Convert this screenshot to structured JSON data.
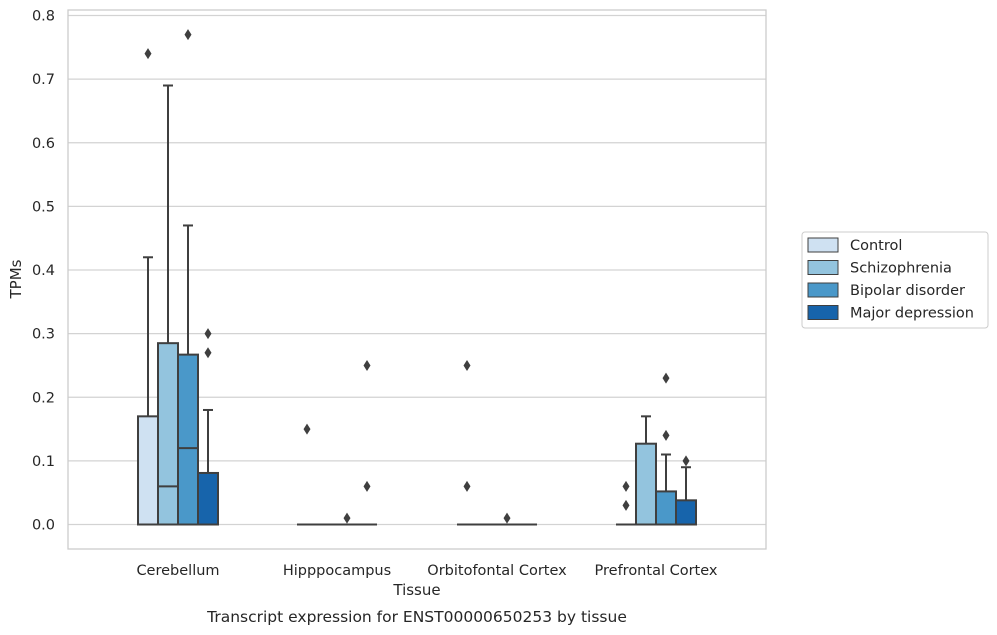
{
  "chart_data": {
    "type": "boxplot",
    "title": "",
    "caption": "Transcript expression for ENST00000650253 by tissue",
    "xlabel": "Tissue",
    "ylabel": "TPMs",
    "ylim": [
      -0.037,
      0.812
    ],
    "yticks": [
      0.0,
      0.1,
      0.2,
      0.3,
      0.4,
      0.5,
      0.6,
      0.7,
      0.8
    ],
    "ytick_labels": [
      "0.0",
      "0.1",
      "0.2",
      "0.3",
      "0.4",
      "0.5",
      "0.6",
      "0.7",
      "0.8"
    ],
    "grid": true,
    "legend_position": "right",
    "categories": [
      "Cerebellum",
      "Hipppocampus",
      "Orbitofontal Cortex",
      "Prefrontal Cortex"
    ],
    "series": [
      {
        "name": "Control",
        "color": "#cfe1f2",
        "boxes": [
          {
            "q1": 0.0,
            "median": 0.0,
            "q3": 0.17,
            "whislo": 0.0,
            "whishi": 0.42,
            "fliers": [
              0.74
            ]
          },
          {
            "q1": 0.0,
            "median": 0.0,
            "q3": 0.0,
            "whislo": 0.0,
            "whishi": 0.0,
            "fliers": [
              0.15
            ]
          },
          {
            "q1": 0.0,
            "median": 0.0,
            "q3": 0.0,
            "whislo": 0.0,
            "whishi": 0.0,
            "fliers": [
              0.06,
              0.25
            ]
          },
          {
            "q1": 0.0,
            "median": 0.0,
            "q3": 0.0,
            "whislo": 0.0,
            "whishi": 0.0,
            "fliers": [
              0.03,
              0.06
            ]
          }
        ]
      },
      {
        "name": "Schizophrenia",
        "color": "#93c4de",
        "boxes": [
          {
            "q1": 0.0,
            "median": 0.06,
            "q3": 0.285,
            "whislo": 0.0,
            "whishi": 0.69,
            "fliers": []
          },
          {
            "q1": 0.0,
            "median": 0.0,
            "q3": 0.0,
            "whislo": 0.0,
            "whishi": 0.0,
            "fliers": []
          },
          {
            "q1": 0.0,
            "median": 0.0,
            "q3": 0.0,
            "whislo": 0.0,
            "whishi": 0.0,
            "fliers": []
          },
          {
            "q1": 0.0,
            "median": 0.0,
            "q3": 0.127,
            "whislo": 0.0,
            "whishi": 0.17,
            "fliers": []
          }
        ]
      },
      {
        "name": "Bipolar disorder",
        "color": "#4a98c9",
        "boxes": [
          {
            "q1": 0.0,
            "median": 0.12,
            "q3": 0.267,
            "whislo": 0.0,
            "whishi": 0.47,
            "fliers": [
              0.77
            ]
          },
          {
            "q1": 0.0,
            "median": 0.0,
            "q3": 0.0,
            "whislo": 0.0,
            "whishi": 0.0,
            "fliers": [
              0.01
            ]
          },
          {
            "q1": 0.0,
            "median": 0.0,
            "q3": 0.0,
            "whislo": 0.0,
            "whishi": 0.0,
            "fliers": [
              0.01
            ]
          },
          {
            "q1": 0.0,
            "median": 0.0,
            "q3": 0.052,
            "whislo": 0.0,
            "whishi": 0.11,
            "fliers": [
              0.14,
              0.23
            ]
          }
        ]
      },
      {
        "name": "Major depression",
        "color": "#1764ab",
        "boxes": [
          {
            "q1": 0.0,
            "median": 0.0,
            "q3": 0.081,
            "whislo": 0.0,
            "whishi": 0.18,
            "fliers": [
              0.27,
              0.3
            ]
          },
          {
            "q1": 0.0,
            "median": 0.0,
            "q3": 0.0,
            "whislo": 0.0,
            "whishi": 0.0,
            "fliers": [
              0.06,
              0.25
            ]
          },
          {
            "q1": 0.0,
            "median": 0.0,
            "q3": 0.0,
            "whislo": 0.0,
            "whishi": 0.0,
            "fliers": []
          },
          {
            "q1": 0.0,
            "median": 0.0,
            "q3": 0.038,
            "whislo": 0.0,
            "whishi": 0.09,
            "fliers": [
              0.1
            ]
          }
        ]
      }
    ]
  }
}
